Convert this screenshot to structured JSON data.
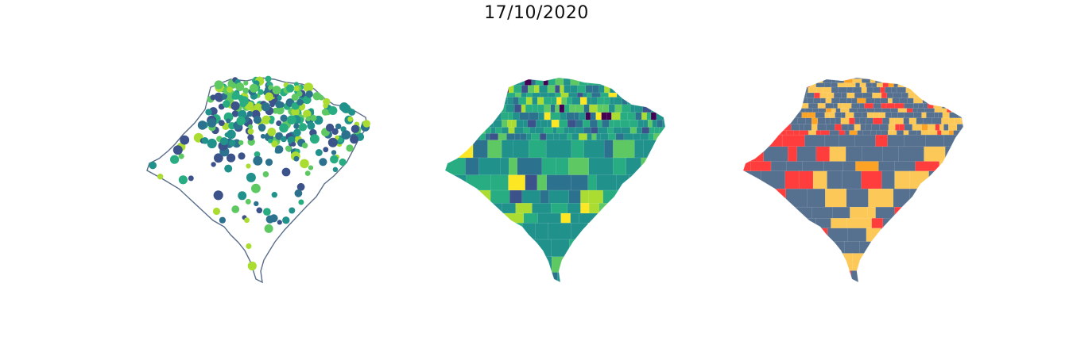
{
  "figure": {
    "title": "17/10/2020"
  },
  "colors": {
    "outline": "#5a6e8a",
    "viridis": [
      "#440154",
      "#3b528b",
      "#2c728e",
      "#21918c",
      "#27ad81",
      "#5ec962",
      "#aadc32",
      "#fde725"
    ],
    "risk": {
      "low": "#56708f",
      "moderate": "#fcc857",
      "high": "#fca326",
      "very_high": "#ff3d3d"
    }
  },
  "panels": [
    {
      "id": "points",
      "kind": "proportional-symbol-map"
    },
    {
      "id": "choropleth",
      "kind": "viridis-choropleth"
    },
    {
      "id": "risk",
      "kind": "categorical-choropleth"
    }
  ]
}
